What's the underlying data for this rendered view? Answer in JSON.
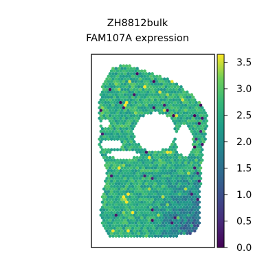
{
  "chart_data": {
    "type": "scatter",
    "title_lines": [
      "ZH8812bulk",
      "FAM107A expression"
    ],
    "xlabel": "",
    "ylabel": "",
    "marker": "hexagon",
    "colormap": "viridis",
    "axis_ticks": "none",
    "colorbar": {
      "min": 0.0,
      "max": 3.65,
      "ticks": [
        0.0,
        0.5,
        1.0,
        1.5,
        2.0,
        2.5,
        3.0,
        3.5
      ],
      "tick_labels": [
        "0.0",
        "0.5",
        "1.0",
        "1.5",
        "2.0",
        "2.5",
        "3.0",
        "3.5"
      ],
      "placement": "right"
    },
    "tissue_expression_summary": {
      "typical_value_range": [
        2.0,
        3.2
      ],
      "lower_values_region": "lower-right",
      "min_observed": 0.0,
      "max_observed": 3.6
    }
  }
}
